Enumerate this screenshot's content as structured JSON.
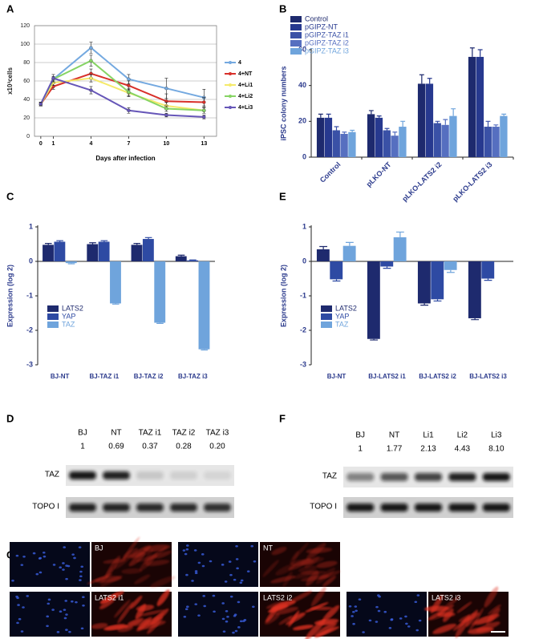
{
  "chart_data": [
    {
      "type": "line",
      "panel": "A",
      "xlabel": "Days after infection",
      "ylabel": "x10³cells",
      "x": [
        0,
        1,
        4,
        7,
        10,
        13
      ],
      "xlim": [
        -0.5,
        14
      ],
      "xticks": [
        0,
        1,
        4,
        7,
        10,
        13
      ],
      "ylim": [
        0,
        120
      ],
      "yticks": [
        0,
        20,
        40,
        60,
        80,
        100,
        120
      ],
      "grid": true,
      "legend": "right",
      "series": [
        {
          "name": "4",
          "color": "#74a9e0",
          "values": [
            35,
            62,
            96,
            62,
            52,
            42
          ],
          "errors": [
            2,
            3,
            6,
            5,
            11,
            9
          ]
        },
        {
          "name": "4+NT",
          "color": "#d8302a",
          "values": [
            35,
            54,
            68,
            55,
            38,
            37
          ],
          "errors": [
            2,
            3,
            5,
            5,
            8,
            5
          ]
        },
        {
          "name": "4+Li1",
          "color": "#f5ea6a",
          "values": [
            35,
            58,
            63,
            47,
            33,
            28
          ],
          "errors": [
            2,
            3,
            4,
            4,
            4,
            3
          ]
        },
        {
          "name": "4+Li2",
          "color": "#86d464",
          "values": [
            35,
            62,
            82,
            48,
            30,
            28
          ],
          "errors": [
            2,
            3,
            6,
            4,
            3,
            3
          ]
        },
        {
          "name": "4+Li3",
          "color": "#6656b8",
          "values": [
            35,
            63,
            50,
            28,
            23,
            21
          ],
          "errors": [
            2,
            4,
            4,
            3,
            2,
            2
          ]
        }
      ]
    },
    {
      "type": "bar",
      "panel": "B",
      "ylabel": "iPSC colony numbers",
      "categories": [
        "Control",
        "pLKO-NT",
        "pLKO-LATS2 i2",
        "pLKO-LATS2 i3"
      ],
      "ylim": [
        0,
        60
      ],
      "yticks": [
        0,
        20,
        40,
        60
      ],
      "legend": "top-left",
      "series": [
        {
          "name": "Control",
          "color": "#1e2a6e",
          "values": [
            22,
            24,
            41,
            56
          ],
          "errors": [
            2,
            2,
            5,
            5
          ]
        },
        {
          "name": "pGIPZ-NT",
          "color": "#27398f",
          "values": [
            22,
            22,
            41,
            56
          ],
          "errors": [
            2,
            1,
            3,
            4
          ]
        },
        {
          "name": "pGIPZ-TAZ i1",
          "color": "#3a51a6",
          "values": [
            15,
            15,
            19,
            17
          ],
          "errors": [
            2,
            1,
            1,
            3
          ]
        },
        {
          "name": "pGIPZ-TAZ i2",
          "color": "#566fc0",
          "values": [
            13,
            12,
            18,
            17
          ],
          "errors": [
            1,
            2,
            3,
            1
          ]
        },
        {
          "name": "pGIPZ-TAZ i3",
          "color": "#6fa4dc",
          "values": [
            14,
            17,
            23,
            23
          ],
          "errors": [
            1,
            3,
            4,
            1
          ]
        }
      ]
    },
    {
      "type": "bar",
      "panel": "C",
      "ylabel": "Expression (log 2)",
      "categories": [
        "BJ-NT",
        "BJ-TAZ i1",
        "BJ-TAZ i2",
        "BJ-TAZ i3"
      ],
      "ylim": [
        -3,
        1
      ],
      "yticks": [
        -3,
        -2,
        -1,
        0,
        1
      ],
      "legend": "bottom-left",
      "series": [
        {
          "name": "LATS2",
          "color": "#1e2a6e",
          "values": [
            0.48,
            0.5,
            0.48,
            0.15
          ],
          "errors": [
            0.04,
            0.04,
            0.04,
            0.03
          ]
        },
        {
          "name": "YAP",
          "color": "#2e4aa3",
          "values": [
            0.57,
            0.57,
            0.65,
            0.03
          ],
          "errors": [
            0.03,
            0.03,
            0.04,
            0.01
          ]
        },
        {
          "name": "TAZ",
          "color": "#6fa4dc",
          "values": [
            -0.05,
            -1.22,
            -1.78,
            -2.55
          ],
          "errors": [
            0.02,
            0.02,
            0.02,
            0.02
          ]
        }
      ]
    },
    {
      "type": "bar",
      "panel": "E",
      "ylabel": "Expression (log 2)",
      "categories": [
        "BJ-NT",
        "BJ-LATS2 i1",
        "BJ-LATS2 i2",
        "BJ-LATS2 i3"
      ],
      "ylim": [
        -3,
        1
      ],
      "yticks": [
        -3,
        -2,
        -1,
        0,
        1
      ],
      "legend": "bottom-left",
      "series": [
        {
          "name": "LATS2",
          "color": "#1e2a6e",
          "values": [
            0.35,
            -2.25,
            -1.22,
            -1.65
          ],
          "errors": [
            0.08,
            0.03,
            0.05,
            0.04
          ]
        },
        {
          "name": "YAP",
          "color": "#2e4aa3",
          "values": [
            -0.52,
            -0.15,
            -1.1,
            -0.5
          ],
          "errors": [
            0.05,
            0.05,
            0.05,
            0.05
          ]
        },
        {
          "name": "TAZ",
          "color": "#6fa4dc",
          "values": [
            0.45,
            0.7,
            -0.25,
            null
          ],
          "errors": [
            0.1,
            0.15,
            0.07,
            null
          ]
        }
      ]
    }
  ],
  "blots": [
    {
      "panel": "D",
      "lanes": [
        "BJ",
        "NT",
        "TAZ i1",
        "TAZ i2",
        "TAZ i3"
      ],
      "quantities": [
        "1",
        "0.69",
        "0.37",
        "0.28",
        "0.20"
      ],
      "rows": [
        "TAZ",
        "TOPO I"
      ]
    },
    {
      "panel": "F",
      "lanes": [
        "BJ",
        "NT",
        "Li1",
        "Li2",
        "Li3"
      ],
      "quantities": [
        "1",
        "1.77",
        "2.13",
        "4.43",
        "8.10"
      ],
      "rows": [
        "TAZ",
        "TOPO I"
      ]
    }
  ],
  "images": {
    "panel": "G",
    "labels": [
      "BJ",
      "NT",
      "LATS2 i1",
      "LATS2 i2",
      "LATS2 i3"
    ]
  }
}
